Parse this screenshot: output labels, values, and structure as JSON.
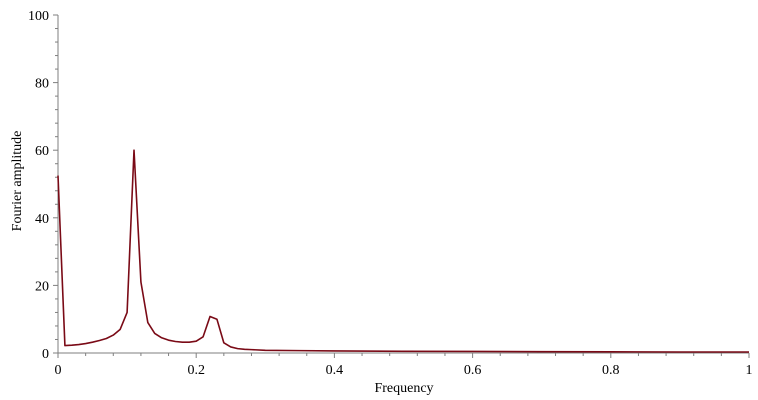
{
  "chart_data": {
    "type": "line",
    "title": "",
    "xlabel": "Frequency",
    "ylabel": "Fourier amplitude",
    "xlim": [
      0,
      1
    ],
    "ylim": [
      0,
      100
    ],
    "x_ticks": [
      "0",
      "0.2",
      "0.4",
      "0.6",
      "0.8",
      "1"
    ],
    "x_tick_values": [
      0,
      0.2,
      0.4,
      0.6,
      0.8,
      1
    ],
    "y_ticks": [
      "0",
      "20",
      "40",
      "60",
      "80",
      "100"
    ],
    "y_tick_values": [
      0,
      20,
      40,
      60,
      80,
      100
    ],
    "grid": false,
    "legend": "none",
    "series": [
      {
        "color": "#7a0a16",
        "x": [
          0,
          0.01,
          0.02,
          0.03,
          0.04,
          0.05,
          0.06,
          0.07,
          0.08,
          0.09,
          0.1,
          0.11,
          0.12,
          0.13,
          0.14,
          0.15,
          0.16,
          0.17,
          0.18,
          0.19,
          0.2,
          0.21,
          0.22,
          0.23,
          0.24,
          0.25,
          0.26,
          0.27,
          0.28,
          0.3,
          0.35,
          0.4,
          0.5,
          0.6,
          0.7,
          0.8,
          0.9,
          1.0
        ],
        "y": [
          52.5,
          2.2,
          2.3,
          2.5,
          2.8,
          3.2,
          3.7,
          4.3,
          5.3,
          7.0,
          12.0,
          60.0,
          21.0,
          9.0,
          5.8,
          4.5,
          3.8,
          3.4,
          3.2,
          3.2,
          3.5,
          4.8,
          10.8,
          10.0,
          3.0,
          1.8,
          1.3,
          1.1,
          1.0,
          0.8,
          0.7,
          0.6,
          0.5,
          0.45,
          0.4,
          0.35,
          0.3,
          0.3
        ]
      }
    ]
  }
}
